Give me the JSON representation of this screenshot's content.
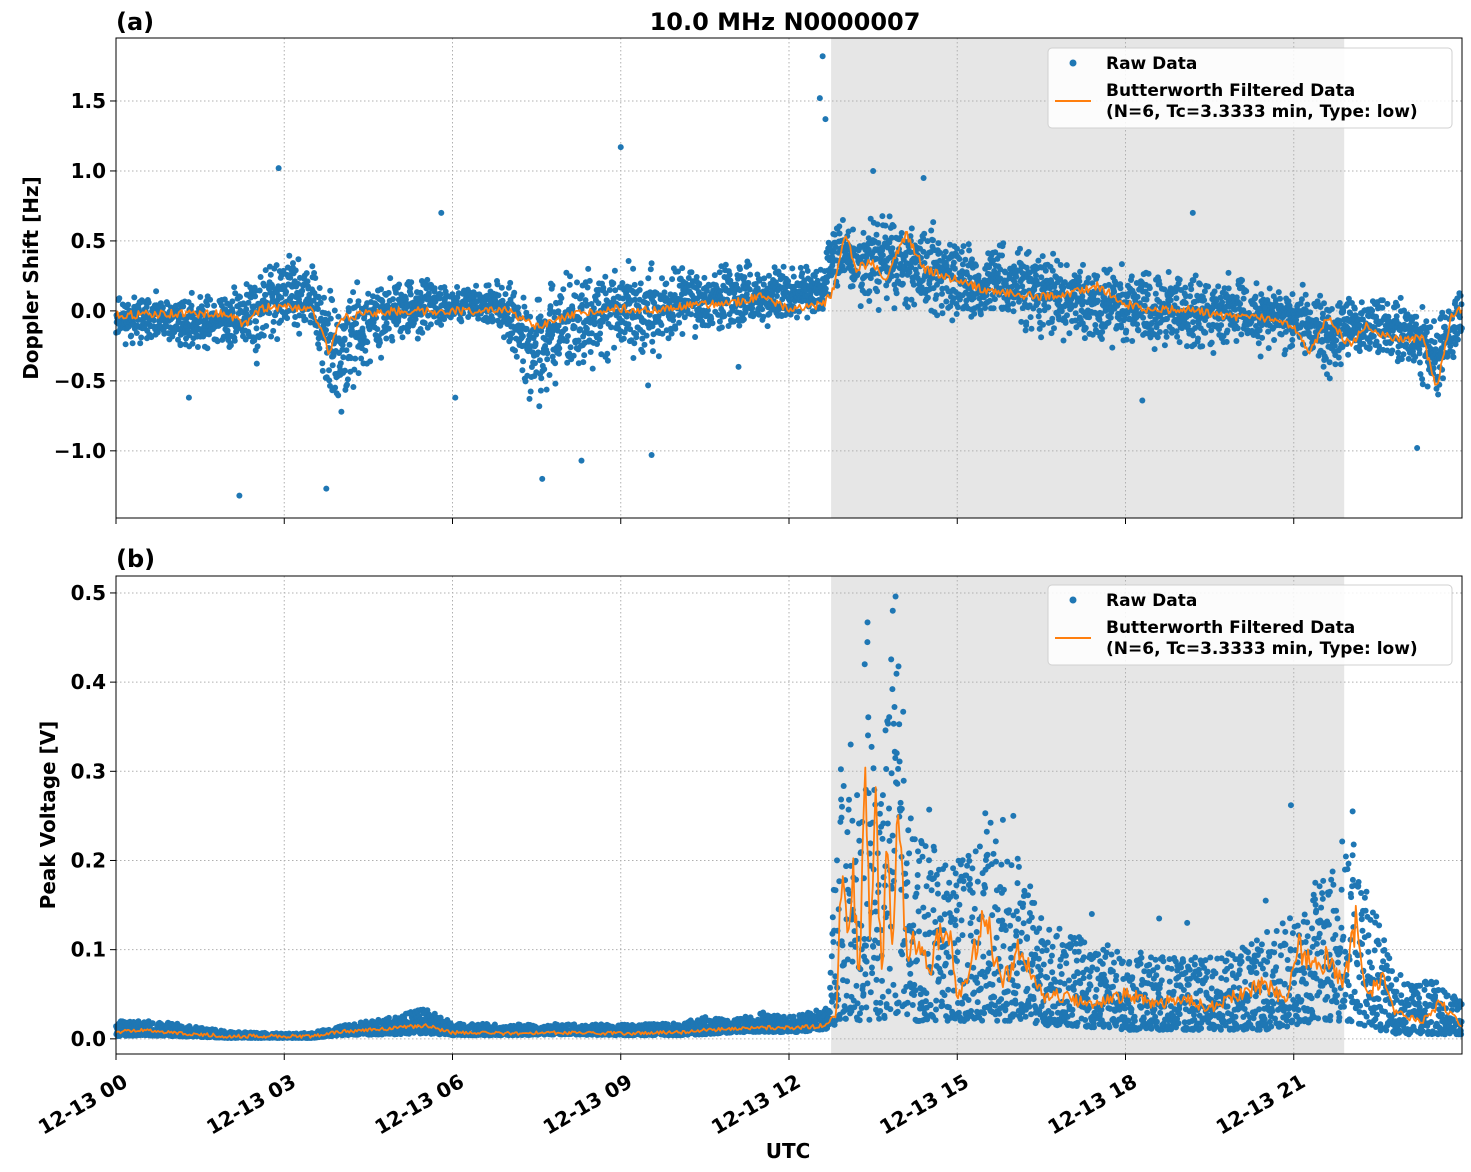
{
  "figure": {
    "title": "10.0 MHz N0000007",
    "xlabel": "UTC"
  },
  "colors": {
    "raw": "#1f77b4",
    "filtered": "#ff7f0e",
    "shade": "#e6e6e6",
    "grid": "#b0b0b0"
  },
  "chart_data": [
    {
      "type": "scatter",
      "panel_label": "(a)",
      "title": "10.0 MHz N0000007",
      "xlabel": "",
      "ylabel": "Doppler Shift [Hz]",
      "x_unit": "hours UTC on 12-13",
      "xlim": [
        0,
        24
      ],
      "ylim": [
        -1.48,
        1.95
      ],
      "x_ticks": [
        0,
        3,
        6,
        9,
        12,
        15,
        18,
        21
      ],
      "x_tick_labels": [
        "12-13 00",
        "12-13 03",
        "12-13 06",
        "12-13 09",
        "12-13 12",
        "12-13 15",
        "12-13 18",
        "12-13 21"
      ],
      "y_ticks": [
        -1.0,
        -0.5,
        0.0,
        0.5,
        1.0,
        1.5
      ],
      "y_tick_labels": [
        "−1.0",
        "−0.5",
        "0.0",
        "0.5",
        "1.0",
        "1.5"
      ],
      "grid": true,
      "shaded_span": [
        12.75,
        21.9
      ],
      "legend": {
        "placement": "top-right",
        "raw_label": "Raw Data",
        "filtered_label_1": "Butterworth Filtered Data",
        "filtered_label_2": "(N=6, Tc=3.3333 min, Type: low)"
      },
      "series": [
        {
          "name": "Raw Data",
          "style": "dots",
          "envelope_x": [
            0,
            1,
            2,
            2.5,
            3,
            3.5,
            3.9,
            4.5,
            5,
            6,
            6.5,
            7,
            7.5,
            8,
            8.5,
            9,
            9.5,
            10,
            10.5,
            11,
            11.5,
            12,
            12.6,
            12.8,
            13.2,
            13.7,
            14.2,
            15,
            16,
            17,
            18,
            19,
            20,
            21,
            21.6,
            22,
            22.5,
            23,
            23.3,
            23.6,
            24
          ],
          "envelope_low": [
            -0.25,
            -0.3,
            -0.35,
            -0.5,
            -0.2,
            -0.3,
            -0.9,
            -0.45,
            -0.3,
            -0.1,
            -0.15,
            -0.3,
            -0.85,
            -0.6,
            -0.55,
            -0.35,
            -0.6,
            -0.2,
            -0.25,
            -0.25,
            -0.2,
            -0.15,
            -0.05,
            0.05,
            0.0,
            -0.05,
            -0.1,
            -0.15,
            -0.2,
            -0.3,
            -0.35,
            -0.35,
            -0.35,
            -0.35,
            -0.55,
            -0.4,
            -0.4,
            -0.45,
            -0.6,
            -0.7,
            -0.25
          ],
          "envelope_high": [
            0.15,
            0.15,
            0.2,
            0.45,
            0.45,
            0.4,
            0.2,
            0.3,
            0.35,
            0.2,
            0.25,
            0.3,
            0.2,
            0.4,
            0.4,
            0.45,
            0.45,
            0.4,
            0.4,
            0.45,
            0.35,
            0.4,
            0.35,
            0.85,
            0.65,
            0.8,
            0.75,
            0.6,
            0.55,
            0.45,
            0.4,
            0.35,
            0.3,
            0.25,
            0.2,
            0.15,
            0.15,
            0.15,
            0.12,
            0.12,
            0.2
          ],
          "outliers": [
            [
              2.2,
              -1.32
            ],
            [
              2.9,
              1.02
            ],
            [
              3.75,
              -1.27
            ],
            [
              9.0,
              1.17
            ],
            [
              12.6,
              1.82
            ],
            [
              12.55,
              1.52
            ],
            [
              12.65,
              1.37
            ],
            [
              13.5,
              1.0
            ],
            [
              14.4,
              0.95
            ],
            [
              8.3,
              -1.07
            ],
            [
              7.6,
              -1.2
            ],
            [
              6.05,
              -0.62
            ],
            [
              5.8,
              0.7
            ],
            [
              19.2,
              0.7
            ],
            [
              18.3,
              -0.64
            ],
            [
              23.2,
              -0.98
            ],
            [
              1.3,
              -0.62
            ],
            [
              9.55,
              -1.03
            ],
            [
              11.1,
              -0.4
            ]
          ]
        },
        {
          "name": "Butterworth Filtered Data",
          "style": "line",
          "x": [
            0,
            1,
            2,
            2.3,
            2.6,
            3,
            3.5,
            3.8,
            4.0,
            4.5,
            5,
            6,
            7,
            7.5,
            8,
            8.5,
            9,
            9.5,
            10,
            11,
            11.5,
            12,
            12.6,
            12.8,
            13.0,
            13.2,
            13.5,
            13.7,
            13.9,
            14.1,
            14.4,
            15,
            15.5,
            16,
            16.5,
            17,
            17.5,
            18,
            18.5,
            19,
            19.5,
            20,
            20.5,
            21,
            21.3,
            21.6,
            22,
            22.3,
            22.6,
            23,
            23.3,
            23.55,
            23.8,
            24
          ],
          "y": [
            -0.03,
            -0.02,
            -0.02,
            -0.1,
            0.02,
            0.03,
            0.02,
            -0.3,
            -0.05,
            -0.02,
            0.0,
            0.0,
            0.0,
            -0.12,
            -0.05,
            0.0,
            0.02,
            0.0,
            0.03,
            0.06,
            0.1,
            0.02,
            0.04,
            0.15,
            0.55,
            0.3,
            0.35,
            0.2,
            0.4,
            0.55,
            0.3,
            0.22,
            0.15,
            0.12,
            0.1,
            0.12,
            0.18,
            0.05,
            0.0,
            0.02,
            -0.02,
            -0.05,
            -0.05,
            -0.12,
            -0.3,
            -0.05,
            -0.25,
            -0.1,
            -0.18,
            -0.2,
            -0.2,
            -0.55,
            -0.05,
            0.02
          ]
        }
      ]
    },
    {
      "type": "scatter",
      "panel_label": "(b)",
      "title": "",
      "xlabel": "UTC",
      "ylabel": "Peak Voltage [V]",
      "x_unit": "hours UTC on 12-13",
      "xlim": [
        0,
        24
      ],
      "ylim": [
        -0.017,
        0.519
      ],
      "x_ticks": [
        0,
        3,
        6,
        9,
        12,
        15,
        18,
        21
      ],
      "x_tick_labels": [
        "12-13 00",
        "12-13 03",
        "12-13 06",
        "12-13 09",
        "12-13 12",
        "12-13 15",
        "12-13 18",
        "12-13 21"
      ],
      "y_ticks": [
        0.0,
        0.1,
        0.2,
        0.3,
        0.4,
        0.5
      ],
      "y_tick_labels": [
        "0.0",
        "0.1",
        "0.2",
        "0.3",
        "0.4",
        "0.5"
      ],
      "grid": true,
      "shaded_span": [
        12.75,
        21.9
      ],
      "legend": {
        "placement": "top-right",
        "raw_label": "Raw Data",
        "filtered_label_1": "Butterworth Filtered Data",
        "filtered_label_2": "(N=6, Tc=3.3333 min, Type: low)"
      },
      "series": [
        {
          "name": "Raw Data",
          "style": "dots",
          "envelope_x": [
            0,
            0.5,
            1,
            2,
            3,
            3.5,
            4,
            5,
            5.5,
            6,
            7,
            8,
            9,
            10,
            10.5,
            11,
            11.5,
            12,
            12.7,
            12.9,
            13.2,
            13.4,
            13.6,
            13.9,
            14.2,
            14.5,
            15,
            15.4,
            15.8,
            16.2,
            16.6,
            17,
            18,
            19,
            20,
            20.5,
            21,
            21.4,
            21.7,
            22,
            22.4,
            22.8,
            23.1,
            23.5,
            24
          ],
          "envelope_low": [
            0.003,
            0.004,
            0.003,
            0.001,
            0.001,
            0.001,
            0.004,
            0.005,
            0.006,
            0.004,
            0.004,
            0.005,
            0.004,
            0.004,
            0.005,
            0.007,
            0.008,
            0.007,
            0.01,
            0.02,
            0.02,
            0.02,
            0.02,
            0.02,
            0.02,
            0.02,
            0.02,
            0.02,
            0.02,
            0.02,
            0.015,
            0.015,
            0.01,
            0.01,
            0.01,
            0.01,
            0.015,
            0.02,
            0.02,
            0.02,
            0.01,
            0.005,
            0.005,
            0.005,
            0.005
          ],
          "envelope_high": [
            0.022,
            0.02,
            0.018,
            0.008,
            0.006,
            0.007,
            0.015,
            0.025,
            0.035,
            0.018,
            0.016,
            0.017,
            0.016,
            0.018,
            0.025,
            0.022,
            0.03,
            0.025,
            0.035,
            0.31,
            0.29,
            0.45,
            0.25,
            0.49,
            0.24,
            0.22,
            0.2,
            0.24,
            0.25,
            0.2,
            0.13,
            0.12,
            0.1,
            0.09,
            0.1,
            0.12,
            0.14,
            0.18,
            0.2,
            0.24,
            0.15,
            0.08,
            0.06,
            0.07,
            0.04
          ],
          "outliers": [
            [
              13.4,
              0.467
            ],
            [
              13.9,
              0.496
            ],
            [
              13.85,
              0.48
            ],
            [
              13.35,
              0.42
            ],
            [
              13.1,
              0.33
            ],
            [
              20.95,
              0.262
            ],
            [
              22.05,
              0.255
            ],
            [
              14.5,
              0.257
            ],
            [
              15.5,
              0.253
            ],
            [
              16.0,
              0.25
            ],
            [
              20.5,
              0.155
            ],
            [
              19.1,
              0.13
            ],
            [
              18.6,
              0.135
            ],
            [
              17.4,
              0.14
            ]
          ]
        },
        {
          "name": "Butterworth Filtered Data",
          "style": "line",
          "x": [
            0,
            0.5,
            1,
            2,
            3,
            3.5,
            4,
            5,
            5.5,
            6,
            7,
            8,
            9,
            10,
            10.5,
            11,
            11.5,
            12,
            12.7,
            12.85,
            12.95,
            13.05,
            13.15,
            13.25,
            13.35,
            13.45,
            13.55,
            13.65,
            13.75,
            13.85,
            13.95,
            14.1,
            14.3,
            14.5,
            14.8,
            15,
            15.2,
            15.5,
            15.8,
            16.1,
            16.5,
            17,
            17.5,
            18,
            18.5,
            19,
            19.5,
            20,
            20.5,
            20.9,
            21.05,
            21.3,
            21.6,
            21.9,
            22.1,
            22.3,
            22.6,
            22.8,
            23.0,
            23.3,
            23.6,
            24
          ],
          "y": [
            0.008,
            0.01,
            0.007,
            0.003,
            0.003,
            0.003,
            0.008,
            0.012,
            0.015,
            0.007,
            0.006,
            0.007,
            0.006,
            0.007,
            0.01,
            0.011,
            0.013,
            0.012,
            0.015,
            0.03,
            0.21,
            0.1,
            0.18,
            0.06,
            0.28,
            0.12,
            0.25,
            0.07,
            0.2,
            0.1,
            0.26,
            0.09,
            0.12,
            0.08,
            0.14,
            0.05,
            0.07,
            0.14,
            0.06,
            0.1,
            0.05,
            0.045,
            0.04,
            0.05,
            0.04,
            0.045,
            0.035,
            0.05,
            0.06,
            0.04,
            0.11,
            0.08,
            0.09,
            0.06,
            0.13,
            0.05,
            0.07,
            0.03,
            0.025,
            0.02,
            0.04,
            0.015
          ]
        }
      ]
    }
  ]
}
